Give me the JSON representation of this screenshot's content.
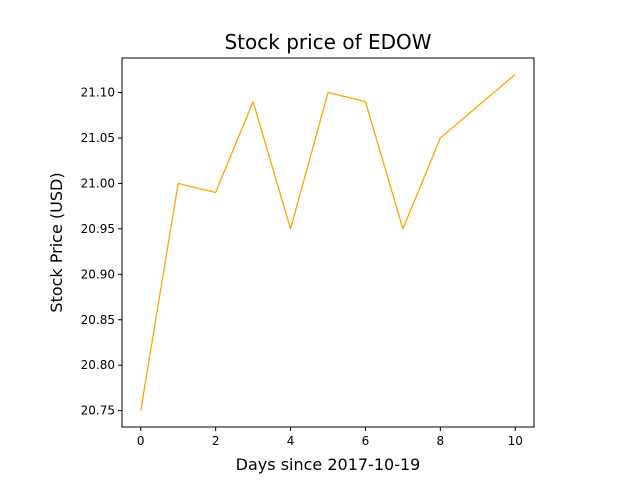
{
  "chart_data": {
    "type": "line",
    "title": "Stock price of EDOW",
    "xlabel": "Days since 2017-10-19",
    "ylabel": "Stock Price (USD)",
    "xlim": [
      -0.5,
      10.5
    ],
    "ylim": [
      20.732,
      21.138
    ],
    "grid": false,
    "x_ticks": [
      0,
      2,
      4,
      6,
      8,
      10
    ],
    "x_tick_labels": [
      "0",
      "2",
      "4",
      "6",
      "8",
      "10"
    ],
    "y_ticks": [
      20.75,
      20.8,
      20.85,
      20.9,
      20.95,
      21.0,
      21.05,
      21.1
    ],
    "y_tick_labels": [
      "20.75",
      "20.80",
      "20.85",
      "20.90",
      "20.95",
      "21.00",
      "21.05",
      "21.10"
    ],
    "series": [
      {
        "color": "#ffa500",
        "x": [
          0,
          1,
          2,
          3,
          4,
          5,
          6,
          7,
          8,
          9,
          10
        ],
        "y": [
          20.75,
          21.0,
          20.99,
          21.09,
          20.95,
          21.1,
          21.09,
          20.95,
          21.05,
          21.085,
          21.12
        ]
      }
    ]
  }
}
